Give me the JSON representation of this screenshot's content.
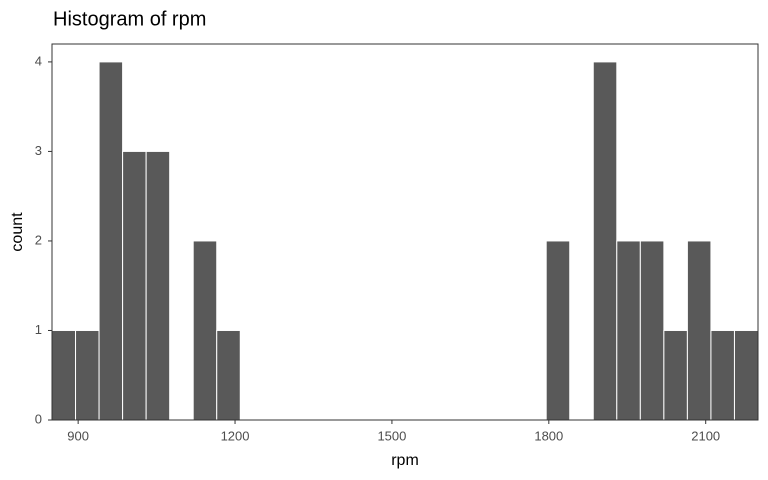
{
  "chart_data": {
    "type": "histogram",
    "title": "Histogram of rpm",
    "x_label": "rpm",
    "y_label": "count",
    "bins": [
      850,
      895,
      940,
      985,
      1030,
      1075,
      1120,
      1165,
      1210,
      1255,
      1300,
      1345,
      1390,
      1435,
      1480,
      1525,
      1570,
      1615,
      1660,
      1705,
      1750,
      1795,
      1840,
      1885,
      1930,
      1975,
      2020,
      2065,
      2110,
      2155,
      2200
    ],
    "values": [
      1,
      1,
      4,
      3,
      3,
      0,
      2,
      1,
      0,
      0,
      0,
      0,
      0,
      0,
      0,
      0,
      0,
      0,
      0,
      0,
      0,
      2,
      0,
      4,
      2,
      2,
      1,
      2,
      1,
      1
    ],
    "color": "#595959",
    "xlim": [
      850,
      2200
    ],
    "ylim": [
      0,
      4.2
    ],
    "xticks": [
      900,
      1200,
      1500,
      1800,
      2100
    ],
    "yticks": [
      0,
      1,
      2,
      3,
      4
    ],
    "grid": false
  }
}
